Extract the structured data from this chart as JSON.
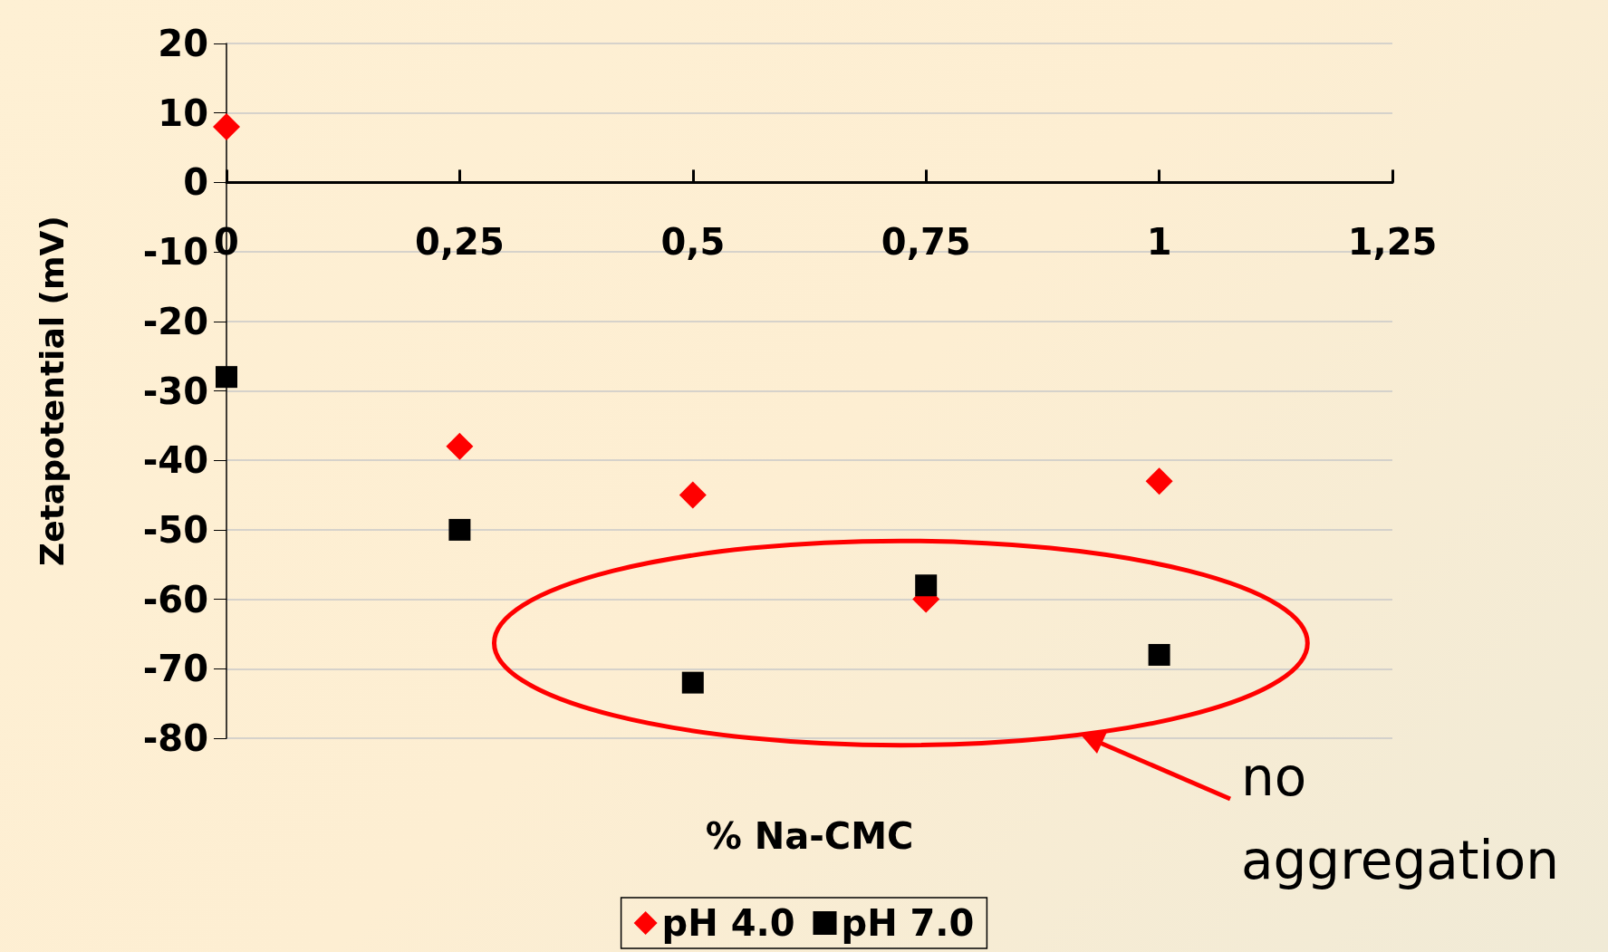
{
  "chart_data": {
    "type": "scatter",
    "xlabel": "% Na-CMC",
    "ylabel": "Zetapotential (mV)",
    "x": [
      0,
      0.25,
      0.5,
      0.75,
      1
    ],
    "series": [
      {
        "name": "pH 4.0",
        "color": "#ff0000",
        "marker": "diamond",
        "values": [
          8,
          -38,
          -45,
          -60,
          -43
        ]
      },
      {
        "name": "pH 7.0",
        "color": "#000000",
        "marker": "square",
        "values": [
          -28,
          -50,
          -72,
          -58,
          -68
        ]
      }
    ],
    "xlim": [
      0,
      1.25
    ],
    "xticks": [
      0,
      {
        "value": 0.25,
        "label": "0,25"
      },
      {
        "value": 0.5,
        "label": "0,5"
      },
      {
        "value": 0.75,
        "label": "0,75"
      },
      1,
      {
        "value": 1.25,
        "label": "1,25"
      }
    ],
    "ylim": [
      -80,
      20
    ],
    "yticks": [
      -80,
      -70,
      -60,
      -50,
      -40,
      -30,
      -20,
      -10,
      0,
      10,
      20
    ],
    "grid": "y",
    "legend": "bottom",
    "annotations": [
      "no aggregation"
    ]
  }
}
